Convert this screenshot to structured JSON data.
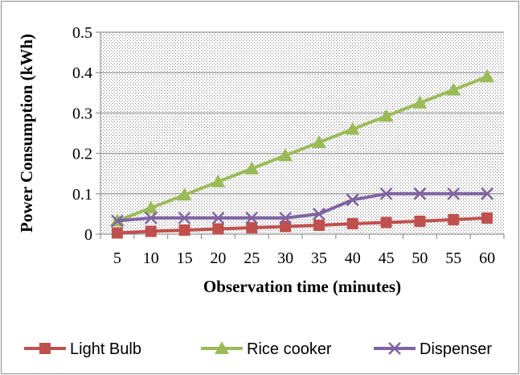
{
  "chart_data": {
    "type": "line",
    "xlabel": "Observation time (minutes)",
    "ylabel": "Power Consumption (kWh)",
    "x": [
      5,
      10,
      15,
      20,
      25,
      30,
      35,
      40,
      45,
      50,
      55,
      60
    ],
    "categories": [
      "5",
      "10",
      "15",
      "20",
      "25",
      "30",
      "35",
      "40",
      "45",
      "50",
      "55",
      "60"
    ],
    "ylim": [
      0,
      0.5
    ],
    "yticks": [
      0,
      0.1,
      0.2,
      0.3,
      0.4,
      0.5
    ],
    "ytick_labels": [
      "0",
      "0.1",
      "0.2",
      "0.3",
      "0.4",
      "0.5"
    ],
    "grid": true,
    "legend_position": "bottom",
    "series": [
      {
        "name": "Light Bulb",
        "color": "#c0504d",
        "marker": "square",
        "values": [
          0.003,
          0.007,
          0.01,
          0.013,
          0.016,
          0.019,
          0.022,
          0.026,
          0.029,
          0.032,
          0.036,
          0.04
        ]
      },
      {
        "name": "Rice cooker",
        "color": "#9bbb59",
        "marker": "triangle",
        "values": [
          0.033,
          0.065,
          0.097,
          0.13,
          0.162,
          0.195,
          0.227,
          0.26,
          0.292,
          0.325,
          0.357,
          0.39
        ]
      },
      {
        "name": "Dispenser",
        "color": "#8064a2",
        "marker": "x",
        "values": [
          0.033,
          0.04,
          0.04,
          0.04,
          0.04,
          0.04,
          0.05,
          0.085,
          0.1,
          0.1,
          0.1,
          0.1
        ]
      }
    ]
  }
}
